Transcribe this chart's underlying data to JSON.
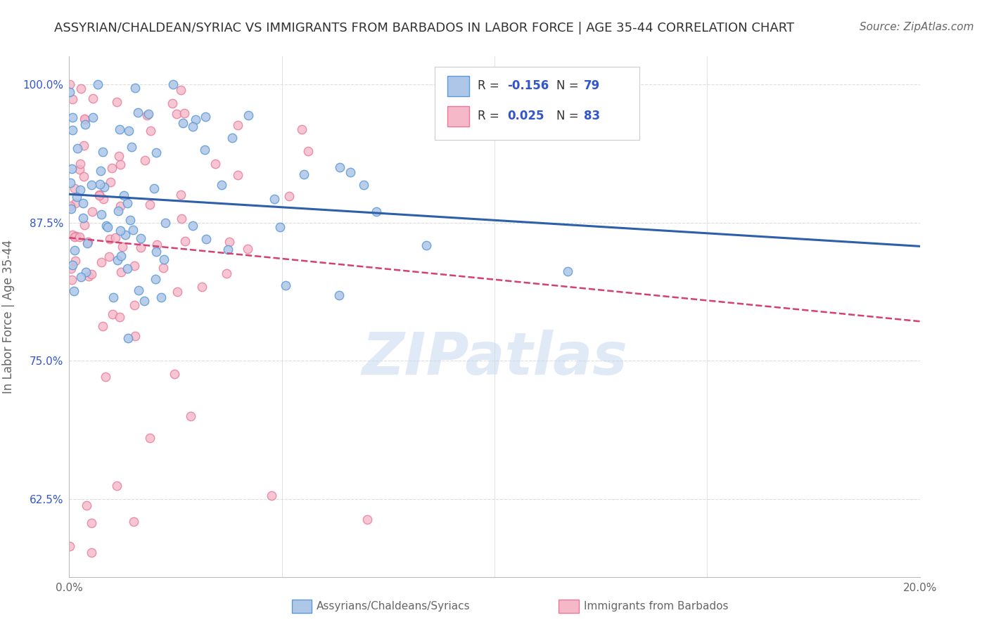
{
  "title": "ASSYRIAN/CHALDEAN/SYRIAC VS IMMIGRANTS FROM BARBADOS IN LABOR FORCE | AGE 35-44 CORRELATION CHART",
  "source": "Source: ZipAtlas.com",
  "ylabel": "In Labor Force | Age 35-44",
  "xlim": [
    0.0,
    0.2
  ],
  "ylim": [
    0.555,
    1.025
  ],
  "xticks": [
    0.0,
    0.05,
    0.1,
    0.15,
    0.2
  ],
  "xticklabels": [
    "0.0%",
    "",
    "",
    "",
    "20.0%"
  ],
  "yticks": [
    0.625,
    0.75,
    0.875,
    1.0
  ],
  "yticklabels": [
    "62.5%",
    "75.0%",
    "87.5%",
    "100.0%"
  ],
  "blue_R": -0.156,
  "blue_N": 79,
  "pink_R": 0.025,
  "pink_N": 83,
  "blue_color": "#aec6e8",
  "pink_color": "#f4b8c8",
  "blue_edge": "#5b9bd5",
  "pink_edge": "#e8799a",
  "blue_label": "Assyrians/Chaldeans/Syriacs",
  "pink_label": "Immigrants from Barbados",
  "watermark": "ZIPatlas",
  "background_color": "#ffffff",
  "grid_color": "#dddddd",
  "title_color": "#333333",
  "axis_color": "#666666",
  "blue_trend_color": "#2e5faa",
  "pink_trend_color": "#d44070",
  "title_fontsize": 13,
  "source_fontsize": 11,
  "axis_label_fontsize": 12,
  "tick_fontsize": 11,
  "legend_fontsize": 13,
  "watermark_fontsize": 60,
  "marker_size": 80
}
